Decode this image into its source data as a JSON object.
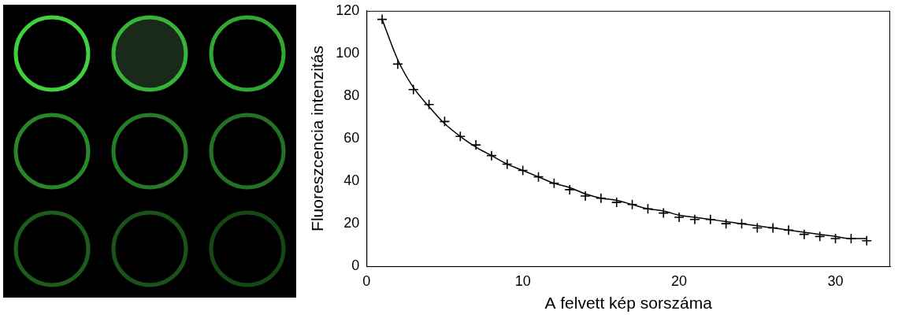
{
  "chart_data": {
    "type": "scatter",
    "xlabel": "A felvett kép sorszáma",
    "ylabel": "Fluoreszcencia intenzitás",
    "x": [
      1,
      2,
      3,
      4,
      5,
      6,
      7,
      8,
      9,
      10,
      11,
      12,
      13,
      14,
      15,
      16,
      17,
      18,
      19,
      20,
      21,
      22,
      23,
      24,
      25,
      26,
      27,
      28,
      29,
      30,
      31,
      32
    ],
    "series": [
      {
        "type": "scatter",
        "marker": "plus",
        "color": "#000000",
        "values": [
          116,
          95,
          83,
          76,
          68,
          61,
          57,
          52,
          48,
          45,
          42,
          39,
          36,
          33,
          32,
          30,
          29,
          27,
          25,
          23,
          22,
          22,
          20,
          20,
          18,
          18,
          17,
          15,
          14,
          13,
          13,
          12
        ]
      },
      {
        "type": "line",
        "line_style": "solid",
        "color": "#000000",
        "values": [
          116,
          97,
          84,
          75,
          67,
          61,
          56,
          52,
          48,
          45,
          42,
          39,
          37,
          34,
          32,
          31,
          29,
          27,
          26,
          24,
          23,
          22,
          21,
          20,
          19,
          18,
          17,
          16,
          15,
          14,
          13,
          13
        ]
      }
    ],
    "xlim": [
      0,
      33.5
    ],
    "xticks": [
      0,
      10,
      20,
      30
    ],
    "ylim": [
      0,
      120
    ],
    "yticks": [
      0,
      20,
      40,
      60,
      80,
      100,
      120
    ],
    "grid": false
  }
}
